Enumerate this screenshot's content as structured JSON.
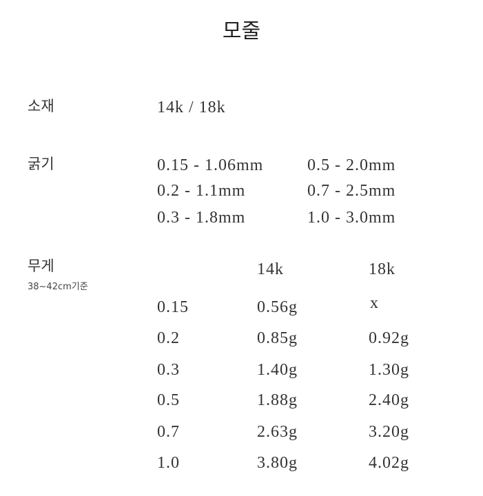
{
  "title": "모줄",
  "material": {
    "label": "소재",
    "value": "14k / 18k"
  },
  "thickness": {
    "label": "굵기",
    "col1": [
      "0.15 - 1.06mm",
      "0.2 - 1.1mm",
      "0.3 - 1.8mm"
    ],
    "col2": [
      "0.5 - 2.0mm",
      "0.7 - 2.5mm",
      "1.0 - 3.0mm"
    ]
  },
  "weight": {
    "label": "무게",
    "note": "38~42cm기준",
    "headers": [
      "14k",
      "18k"
    ],
    "rows": [
      {
        "size": "0.15",
        "k14": "0.56g",
        "k18": "x"
      },
      {
        "size": "0.2",
        "k14": "0.85g",
        "k18": "0.92g"
      },
      {
        "size": "0.3",
        "k14": "1.40g",
        "k18": "1.30g"
      },
      {
        "size": "0.5",
        "k14": "1.88g",
        "k18": "2.40g"
      },
      {
        "size": "0.7",
        "k14": "2.63g",
        "k18": "3.20g"
      },
      {
        "size": "1.0",
        "k14": "3.80g",
        "k18": "4.02g"
      }
    ]
  }
}
